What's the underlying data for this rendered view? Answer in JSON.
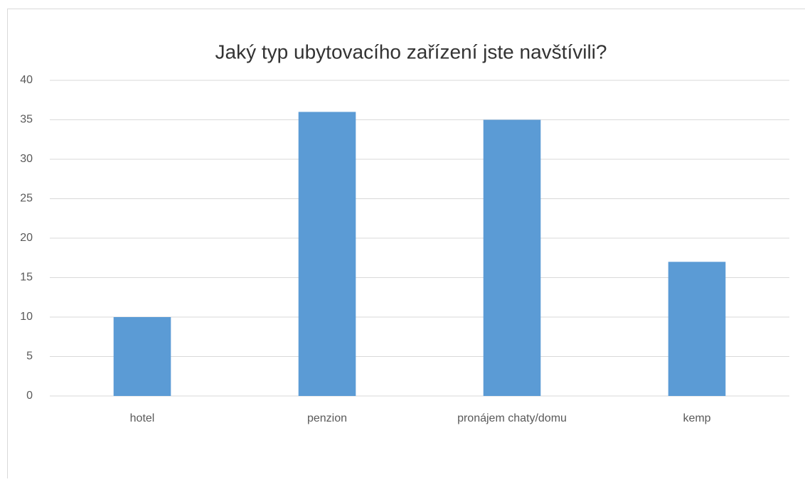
{
  "chart_data": {
    "type": "bar",
    "title": "Jaký typ ubytovacího zařízení jste navštívili?",
    "categories": [
      "hotel",
      "penzion",
      "pronájem chaty/domu",
      "kemp"
    ],
    "values": [
      10,
      36,
      35,
      17
    ],
    "color": "#5b9bd5",
    "ylim": [
      0,
      40
    ],
    "yticks": [
      0,
      5,
      10,
      15,
      20,
      25,
      30,
      35,
      40
    ],
    "grid": true
  }
}
